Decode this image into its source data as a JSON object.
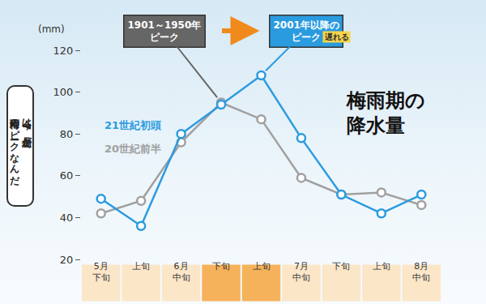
{
  "chart_data": {
    "type": "line",
    "title": "梅雨期の\n降水量",
    "y_label": "(mm)",
    "categories": [
      "5月\n下旬",
      "上旬",
      "6月\n中旬",
      "下旬",
      "上旬",
      "7月\n中旬",
      "下旬",
      "上旬",
      "8月\n中旬"
    ],
    "series": [
      {
        "name": "21世紀初頭",
        "color": "#2b9be0",
        "marker": "circle",
        "values": [
          49,
          36,
          80,
          94,
          108,
          78,
          51,
          42,
          51
        ]
      },
      {
        "name": "20世紀前半",
        "color": "#a0a0a0",
        "marker": "circle",
        "values": [
          42,
          48,
          76,
          95,
          87,
          59,
          51,
          52,
          46
        ]
      }
    ],
    "ylim": [
      20,
      120
    ],
    "yticks": [
      20,
      40,
      60,
      80,
      100,
      120
    ],
    "grid": false,
    "annotations": [
      {
        "text": "1901～1950年\nピーク",
        "series": "20世紀前半"
      },
      {
        "text": "2001年以降の\nピーク",
        "series": "21世紀初頭",
        "tag": "遅れる"
      },
      {
        "text": "今は7月上旬が\n梅雨のピークなんだ"
      }
    ]
  }
}
